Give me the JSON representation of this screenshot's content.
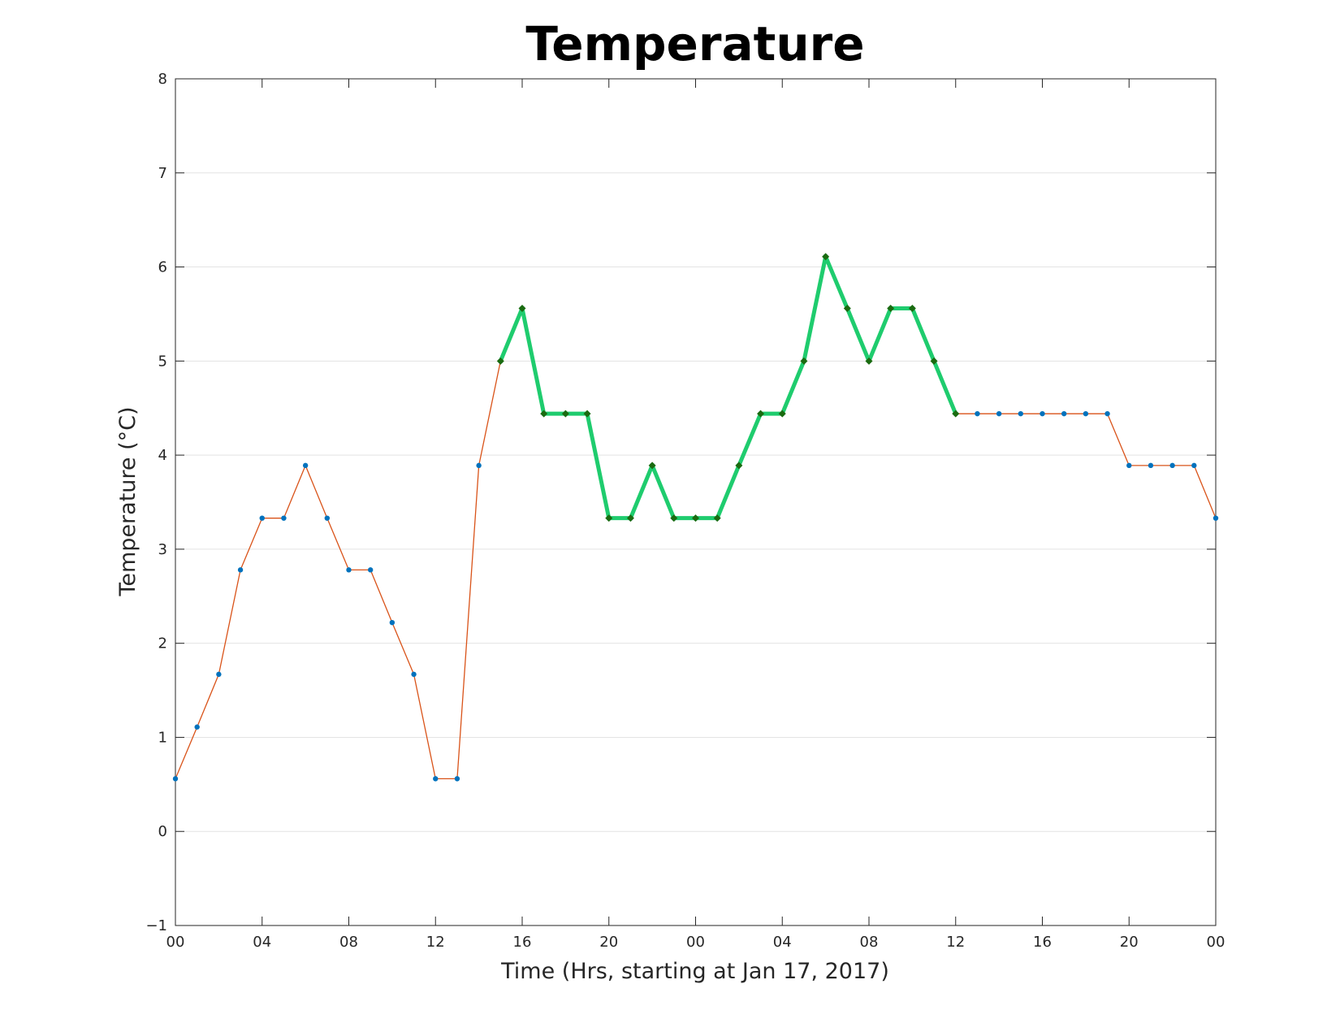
{
  "chart_data": {
    "type": "line",
    "title": "Temperature",
    "xlabel": "Time (Hrs, starting at Jan 17, 2017)",
    "ylabel": "Temperature (°C)",
    "xlim": [
      0,
      48
    ],
    "ylim": [
      -1,
      8
    ],
    "grid": "y",
    "x_ticks": [
      0,
      4,
      8,
      12,
      16,
      20,
      24,
      28,
      32,
      36,
      40,
      44,
      48
    ],
    "x_tick_labels": [
      "00",
      "04",
      "08",
      "12",
      "16",
      "20",
      "00",
      "04",
      "08",
      "12",
      "16",
      "20",
      "00"
    ],
    "y_ticks": [
      -1,
      0,
      1,
      2,
      3,
      4,
      5,
      6,
      7,
      8
    ],
    "y_tick_labels": [
      "−1",
      "0",
      "1",
      "2",
      "3",
      "4",
      "5",
      "6",
      "7",
      "8"
    ],
    "series": [
      {
        "style": "thin",
        "line_color": "#d95319",
        "marker_color": "#0072bd",
        "x": [
          0,
          1,
          2,
          3,
          4,
          5,
          6,
          7,
          8,
          9,
          10,
          11,
          12,
          13,
          14,
          15,
          16,
          17,
          18,
          19,
          20,
          21,
          22,
          23,
          24,
          25,
          26,
          27,
          28,
          29,
          30,
          31,
          32,
          33,
          34,
          35,
          36,
          37,
          38,
          39,
          40,
          41,
          42,
          43,
          44,
          45,
          46,
          47,
          48
        ],
        "values": [
          0.56,
          1.11,
          1.67,
          2.78,
          3.33,
          3.33,
          3.89,
          3.33,
          2.78,
          2.78,
          2.22,
          1.67,
          0.56,
          0.56,
          3.89,
          5.0,
          5.56,
          4.44,
          4.44,
          4.44,
          3.33,
          3.33,
          3.89,
          3.33,
          3.33,
          3.33,
          3.89,
          4.44,
          4.44,
          5.0,
          6.11,
          5.56,
          5.0,
          5.56,
          5.56,
          5.0,
          4.44,
          4.44,
          4.44,
          4.44,
          4.44,
          4.44,
          4.44,
          4.44,
          3.89,
          3.89,
          3.89,
          3.89,
          3.33
        ]
      },
      {
        "style": "thick",
        "line_color": "#1fcc6e",
        "marker_color": "#1a6b10",
        "x": [
          15,
          16,
          17,
          18,
          19,
          20,
          21,
          22,
          23,
          24,
          25,
          26,
          27,
          28,
          29,
          30,
          31,
          32,
          33,
          34,
          35,
          36
        ],
        "values": [
          5.0,
          5.56,
          4.44,
          4.44,
          4.44,
          3.33,
          3.33,
          3.89,
          3.33,
          3.33,
          3.33,
          3.89,
          4.44,
          4.44,
          5.0,
          6.11,
          5.56,
          5.0,
          5.56,
          5.56,
          5.0,
          4.44
        ]
      }
    ]
  }
}
